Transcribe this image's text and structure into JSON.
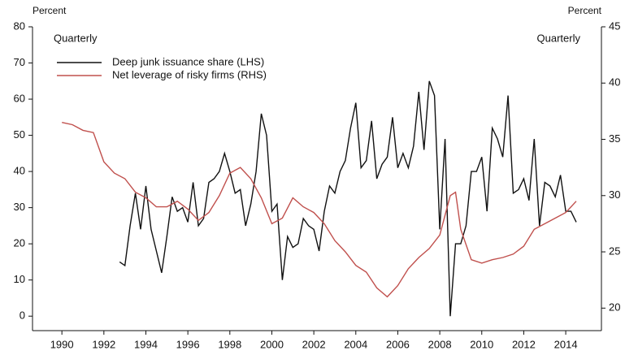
{
  "chart_data": {
    "type": "line",
    "y_label": "Percent",
    "y2_label": "Percent",
    "annotations": [
      "Quarterly",
      "Quarterly"
    ],
    "xlim": [
      1988.6,
      2015.7
    ],
    "xticks": [
      1990,
      1992,
      1994,
      1996,
      1998,
      2000,
      2002,
      2004,
      2006,
      2008,
      2010,
      2012,
      2014
    ],
    "ylim": [
      -4,
      80
    ],
    "yticks": [
      0,
      10,
      20,
      30,
      40,
      50,
      60,
      70,
      80
    ],
    "y2lim": [
      18,
      45
    ],
    "y2ticks": [
      20,
      25,
      30,
      35,
      40,
      45
    ],
    "grid": false,
    "legend": "upper left",
    "series": [
      {
        "name": "Deep junk issuance share (LHS)",
        "color": "#111111",
        "axis": "y",
        "x": [
          1992.75,
          1993,
          1993.25,
          1993.5,
          1993.75,
          1994,
          1994.25,
          1994.5,
          1994.75,
          1995,
          1995.25,
          1995.5,
          1995.75,
          1996,
          1996.25,
          1996.5,
          1996.75,
          1997,
          1997.25,
          1997.5,
          1997.75,
          1998,
          1998.25,
          1998.5,
          1998.75,
          1999,
          1999.25,
          1999.5,
          1999.75,
          2000,
          2000.25,
          2000.5,
          2000.75,
          2001,
          2001.25,
          2001.5,
          2001.75,
          2002,
          2002.25,
          2002.5,
          2002.75,
          2003,
          2003.25,
          2003.5,
          2003.75,
          2004,
          2004.25,
          2004.5,
          2004.75,
          2005,
          2005.25,
          2005.5,
          2005.75,
          2006,
          2006.25,
          2006.5,
          2006.75,
          2007,
          2007.25,
          2007.5,
          2007.75,
          2008,
          2008.25,
          2008.5,
          2008.75,
          2009,
          2009.25,
          2009.5,
          2009.75,
          2010,
          2010.25,
          2010.5,
          2010.75,
          2011,
          2011.25,
          2011.5,
          2011.75,
          2012,
          2012.25,
          2012.5,
          2012.75,
          2013,
          2013.25,
          2013.5,
          2013.75,
          2014,
          2014.25,
          2014.5
        ],
        "values": [
          15,
          14,
          25,
          34,
          24,
          36,
          24,
          18,
          12,
          22,
          33,
          29,
          30,
          26,
          37,
          25,
          27,
          37,
          38,
          40,
          45,
          40,
          34,
          35,
          25,
          31,
          40,
          56,
          50,
          29,
          31,
          10,
          22,
          19,
          20,
          27,
          25,
          24,
          18,
          29,
          36,
          34,
          40,
          43,
          52,
          59,
          41,
          43,
          54,
          38,
          42,
          44,
          55,
          41,
          45,
          41,
          47,
          62,
          46,
          65,
          61,
          24,
          49,
          0,
          20,
          20,
          25,
          40,
          40,
          44,
          29,
          52,
          49,
          44,
          61,
          34,
          35,
          38,
          32,
          49,
          25,
          37,
          36,
          33,
          39,
          29,
          29,
          26
        ]
      },
      {
        "name": "Net leverage of risky firms (RHS)",
        "color": "#c0504d",
        "axis": "y2",
        "x": [
          1990,
          1990.5,
          1991,
          1991.5,
          1992,
          1992.5,
          1993,
          1993.5,
          1994,
          1994.5,
          1995,
          1995.5,
          1996,
          1996.5,
          1997,
          1997.5,
          1998,
          1998.5,
          1999,
          1999.5,
          2000,
          2000.5,
          2001,
          2001.5,
          2002,
          2002.5,
          2003,
          2003.5,
          2004,
          2004.5,
          2005,
          2005.5,
          2006,
          2006.5,
          2007,
          2007.5,
          2008,
          2008.5,
          2008.75,
          2009,
          2009.5,
          2010,
          2010.5,
          2011,
          2011.5,
          2012,
          2012.5,
          2013,
          2013.5,
          2014,
          2014.5
        ],
        "values": [
          36.5,
          36.3,
          35.8,
          35.6,
          33.0,
          32.0,
          31.5,
          30.3,
          29.8,
          29.0,
          29.0,
          29.5,
          28.8,
          27.8,
          28.5,
          30.0,
          32.0,
          32.5,
          31.5,
          29.8,
          27.5,
          28.0,
          29.8,
          29.0,
          28.5,
          27.5,
          26.0,
          25.0,
          23.8,
          23.2,
          21.8,
          21.0,
          22.0,
          23.5,
          24.5,
          25.3,
          26.5,
          30.0,
          30.3,
          27.0,
          24.3,
          24.0,
          24.3,
          24.5,
          24.8,
          25.5,
          27.0,
          27.5,
          28.0,
          28.5,
          29.5
        ]
      }
    ]
  }
}
